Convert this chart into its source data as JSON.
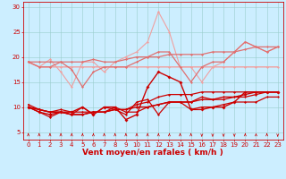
{
  "x": [
    0,
    1,
    2,
    3,
    4,
    5,
    6,
    7,
    8,
    9,
    10,
    11,
    12,
    13,
    14,
    15,
    16,
    17,
    18,
    19,
    20,
    21,
    22,
    23
  ],
  "series": [
    {
      "name": "light_pink_flat",
      "color": "#f0a0a0",
      "linewidth": 1.0,
      "marker": "D",
      "markersize": 1.5,
      "y": [
        19,
        18,
        18,
        18,
        18,
        18,
        18,
        18,
        18,
        18,
        18,
        18,
        18,
        18,
        18,
        18,
        18,
        18,
        18,
        18,
        18,
        18,
        18,
        18
      ]
    },
    {
      "name": "light_pink_wavy",
      "color": "#f0a0a0",
      "linewidth": 0.8,
      "marker": "D",
      "markersize": 1.5,
      "y": [
        19,
        18,
        19.5,
        17,
        14,
        19,
        19,
        17,
        19,
        20,
        21,
        23,
        29,
        25,
        18,
        18,
        15,
        18,
        19,
        21,
        23,
        22,
        21,
        22
      ]
    },
    {
      "name": "pink_trend1",
      "color": "#e07070",
      "linewidth": 0.9,
      "marker": "D",
      "markersize": 1.5,
      "y": [
        19,
        18,
        18,
        19,
        19,
        19,
        19.5,
        19,
        19,
        19.5,
        20,
        20,
        20,
        20.5,
        20.5,
        20.5,
        20.5,
        21,
        21,
        21,
        21.5,
        22,
        22,
        22
      ]
    },
    {
      "name": "pink_trend2",
      "color": "#e07070",
      "linewidth": 0.9,
      "marker": "D",
      "markersize": 1.5,
      "y": [
        19,
        19,
        19,
        19,
        17.5,
        14,
        17,
        18,
        18,
        18,
        19,
        20,
        21,
        21,
        18,
        15,
        18,
        19,
        19,
        21,
        23,
        22,
        21,
        22
      ]
    },
    {
      "name": "red_spike",
      "color": "#cc0000",
      "linewidth": 1.0,
      "marker": "D",
      "markersize": 2.0,
      "y": [
        10,
        9,
        8.5,
        9,
        9,
        10,
        8.5,
        10,
        10,
        7.5,
        8.5,
        14,
        17,
        16,
        15,
        9.5,
        9.5,
        10,
        10,
        11,
        13,
        13,
        13,
        13
      ]
    },
    {
      "name": "red_trend1",
      "color": "#cc0000",
      "linewidth": 1.0,
      "marker": "D",
      "markersize": 1.5,
      "y": [
        10,
        9.5,
        9,
        9,
        8.5,
        8.5,
        9,
        9,
        9.5,
        9.5,
        10,
        10,
        10.5,
        11,
        11,
        11,
        11.5,
        11.5,
        12,
        12,
        12.5,
        13,
        13,
        13
      ]
    },
    {
      "name": "red_trend2",
      "color": "#cc0000",
      "linewidth": 0.9,
      "marker": "D",
      "markersize": 1.5,
      "y": [
        10,
        9.5,
        9,
        9,
        8.5,
        8.5,
        9,
        9,
        9.5,
        9.5,
        10.5,
        11,
        12,
        12.5,
        12.5,
        12.5,
        13,
        13,
        13,
        13,
        13,
        13,
        13,
        13
      ]
    },
    {
      "name": "red_lower",
      "color": "#cc0000",
      "linewidth": 0.9,
      "marker": "D",
      "markersize": 1.5,
      "y": [
        10,
        9,
        8,
        9,
        8.5,
        10,
        8.5,
        10,
        9.5,
        8.5,
        11,
        11.5,
        8.5,
        11,
        11,
        9.5,
        10,
        10,
        10.5,
        11,
        11,
        11,
        12,
        12
      ]
    },
    {
      "name": "red_bottom",
      "color": "#cc0000",
      "linewidth": 0.9,
      "marker": "D",
      "markersize": 1.5,
      "y": [
        10.5,
        9.5,
        9,
        9.5,
        9,
        9,
        9,
        9,
        10,
        9,
        9,
        10,
        10.5,
        11,
        11,
        11,
        12,
        11.5,
        11.5,
        12,
        12,
        12.5,
        13,
        13
      ]
    }
  ],
  "xlabel": "Vent moyen/en rafales ( km/h )",
  "xlabel_color": "#cc0000",
  "xlabel_fontsize": 6.5,
  "xtick_labels": [
    "0",
    "1",
    "2",
    "3",
    "4",
    "5",
    "6",
    "7",
    "8",
    "9",
    "10",
    "11",
    "12",
    "13",
    "14",
    "15",
    "16",
    "17",
    "18",
    "19",
    "20",
    "21",
    "22",
    "23"
  ],
  "yticks": [
    5,
    10,
    15,
    20,
    25,
    30
  ],
  "ylim": [
    3.5,
    31
  ],
  "xlim": [
    -0.5,
    23.5
  ],
  "bg_color": "#cceeff",
  "grid_color": "#99cccc",
  "tick_color": "#cc0000",
  "tick_fontsize": 5.0,
  "arrow_color": "#cc0000",
  "arrow_dirs": [
    1,
    1,
    1,
    1,
    1,
    1,
    1,
    1,
    1,
    1,
    1,
    1,
    1,
    1,
    1,
    1,
    -1,
    -1,
    -1,
    -1,
    1,
    1,
    1,
    -1
  ]
}
